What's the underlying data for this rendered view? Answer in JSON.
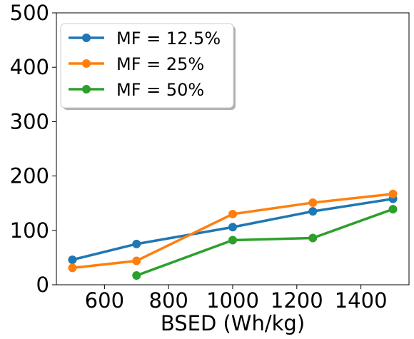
{
  "chart_data": {
    "type": "line",
    "title": "",
    "xlabel": "BSED (Wh/kg)",
    "ylabel": "",
    "xlim": [
      450,
      1550
    ],
    "ylim": [
      0,
      500
    ],
    "xticks": [
      600,
      800,
      1000,
      1200,
      1400
    ],
    "yticks": [
      0,
      100,
      200,
      300,
      400,
      500
    ],
    "grid": false,
    "legend_position": "top-left",
    "series": [
      {
        "name": "MF = 12.5%",
        "color": "#1f77b4",
        "x": [
          500,
          700,
          1000,
          1250,
          1500
        ],
        "y": [
          46,
          75,
          106,
          135,
          158
        ]
      },
      {
        "name": "MF = 25%",
        "color": "#ff7f0e",
        "x": [
          500,
          700,
          1000,
          1250,
          1500
        ],
        "y": [
          31,
          44,
          130,
          151,
          167
        ]
      },
      {
        "name": "MF = 50%",
        "color": "#2ca02c",
        "x": [
          700,
          1000,
          1250,
          1500
        ],
        "y": [
          17,
          82,
          86,
          139
        ]
      }
    ]
  }
}
